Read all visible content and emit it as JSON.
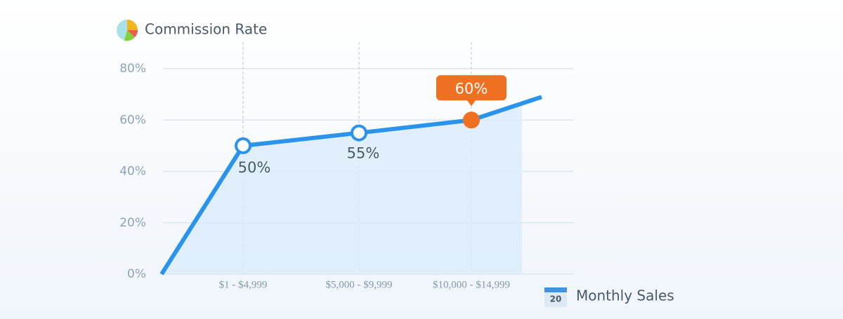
{
  "chart_data": {
    "type": "line",
    "y_label": "Commission Rate",
    "x_label": "Monthly Sales",
    "x_label_icon_text": "20",
    "categories": [
      null,
      "$1 - $4,999",
      "$5,000 - $9,999",
      "$10,000 - $14,999",
      null
    ],
    "series": [
      {
        "color": "#2a93ec",
        "values": [
          0,
          50,
          55,
          60,
          69
        ],
        "value_labels": [
          null,
          "50%",
          "55%",
          "60%",
          null
        ]
      }
    ],
    "highlight": 3,
    "highlight_color": "#f07022",
    "ylim": [
      0,
      80
    ],
    "yticks": [
      {
        "value": 0,
        "label": "0%"
      },
      {
        "value": 20,
        "label": "20%"
      },
      {
        "value": 40,
        "label": "40%"
      },
      {
        "value": 60,
        "label": "60%"
      },
      {
        "value": 80,
        "label": "80%"
      }
    ],
    "grid": true
  }
}
